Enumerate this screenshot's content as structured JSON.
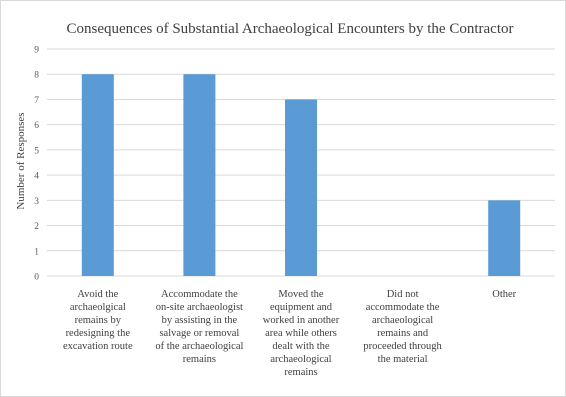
{
  "chart_data": {
    "type": "bar",
    "title": "Consequences of Substantial Archaeological Encounters by the Contractor",
    "xlabel": "",
    "ylabel": "Number of Responses",
    "ylim": [
      0,
      9
    ],
    "yticks": [
      0,
      1,
      2,
      3,
      4,
      5,
      6,
      7,
      8,
      9
    ],
    "grid": true,
    "legend": "none",
    "bar_color": "#5b9bd5",
    "categories": [
      [
        "Avoid the",
        "archaeolgical",
        "remains by",
        "redesigning the",
        "excavation route"
      ],
      [
        "Accommodate the",
        "on-site archaeologist",
        "by assisting in the",
        "salvage or removal",
        "of the archaeological",
        "remains"
      ],
      [
        "Moved the",
        "equipment and",
        "worked in another",
        "area while others",
        "dealt with the",
        "archaeological",
        "remains"
      ],
      [
        "Did not",
        "accommodate the",
        "archaeological",
        "remains and",
        "proceeded through",
        "the material"
      ],
      [
        "Other"
      ]
    ],
    "values": [
      8,
      8,
      7,
      0,
      3
    ]
  }
}
